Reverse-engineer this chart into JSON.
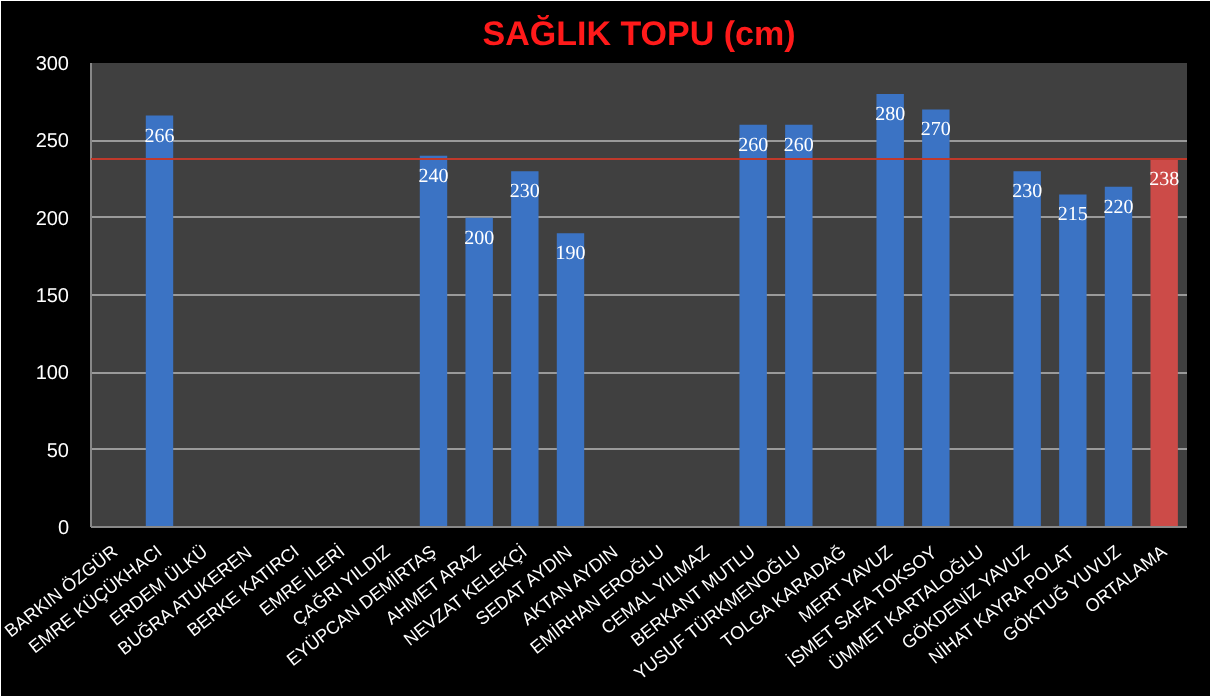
{
  "chart_data": {
    "type": "bar",
    "title": "SAĞLIK TOPU (cm)",
    "categories": [
      "BARKIN ÖZGÜR",
      "EMRE KÜÇÜKHACI",
      "ERDEM ÜLKÜ",
      "BUĞRA ATUKEREN",
      "BERKE KATIRCI",
      "EMRE İLERİ",
      "ÇAĞRI YILDIZ",
      "EYÜPCAN DEMİRTAŞ",
      "AHMET ARAZ",
      "NEVZAT KELEKÇİ",
      "SEDAT AYDIN",
      "AKTAN AYDIN",
      "EMİRHAN EROĞLU",
      "CEMAL YILMAZ",
      "BERKANT MUTLU",
      "YUSUF TÜRKMENOĞLU",
      "TOLGA KARADAĞ",
      "MERT YAVUZ",
      "İSMET SAFA TOKSOY",
      "ÜMMET KARTALOĞLU",
      "GÖKDENİZ YAVUZ",
      "NİHAT KAYRA POLAT",
      "GÖKTUĞ YUVUZ",
      "ORTALAMA"
    ],
    "values": [
      null,
      266,
      null,
      null,
      null,
      null,
      null,
      240,
      200,
      230,
      190,
      null,
      null,
      null,
      260,
      260,
      null,
      280,
      270,
      null,
      230,
      215,
      220,
      238
    ],
    "colors": [
      "#3b73c4",
      "#3b73c4",
      "#3b73c4",
      "#3b73c4",
      "#3b73c4",
      "#3b73c4",
      "#3b73c4",
      "#3b73c4",
      "#3b73c4",
      "#3b73c4",
      "#3b73c4",
      "#3b73c4",
      "#3b73c4",
      "#3b73c4",
      "#3b73c4",
      "#3b73c4",
      "#3b73c4",
      "#3b73c4",
      "#3b73c4",
      "#3b73c4",
      "#3b73c4",
      "#3b73c4",
      "#3b73c4",
      "#cc4b48"
    ],
    "ylim": [
      0,
      300
    ],
    "yticks": [
      0,
      50,
      100,
      150,
      200,
      250,
      300
    ],
    "grid": "y",
    "data_labels": true,
    "ref_lines": [
      {
        "axis": "y",
        "value": 238,
        "label": null,
        "color": "#c0392b"
      }
    ]
  }
}
